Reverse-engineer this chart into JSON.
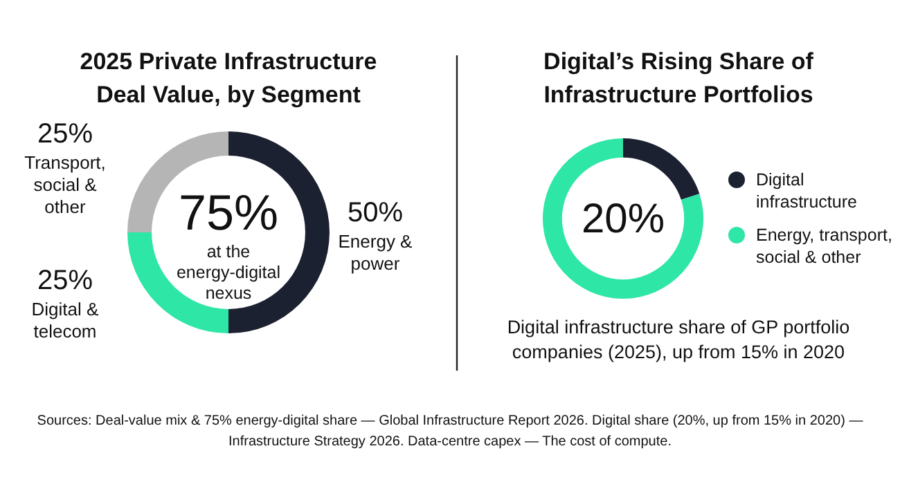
{
  "chart_data": [
    {
      "type": "donut",
      "title": "2025 Private Infrastructure Deal Value, by Segment",
      "categories": [
        "Energy & power",
        "Digital & telecom",
        "Transport, social & other"
      ],
      "values": [
        50,
        25,
        25
      ],
      "colors": [
        "#1b2130",
        "#2ee6a6",
        "#b5b5b5"
      ],
      "value_labels": [
        "50%",
        "25%",
        "25%"
      ],
      "annotations": [
        "75%",
        "at the energy-digital nexus",
        "Sources: Deal-value mix & 75% energy-digital share — Global Infrastructure Report 2026. Digital share (20%, up from 15% in 2020) — Infrastructure Strategy 2026. Data-centre capex — The cost of compute."
      ]
    },
    {
      "type": "donut",
      "title": "Digital’s Rising Share of Infrastructure Portfolios",
      "subtitle": "Digital infrastructure share of GP portfolio companies (2025), up from 15% in 2020",
      "categories": [
        "Digital infrastructure",
        "Energy, transport, social & other"
      ],
      "values": [
        20,
        80
      ],
      "colors": [
        "#1b2130",
        "#2ee6a6"
      ],
      "legend": "right",
      "annotations": [
        "20%"
      ]
    }
  ]
}
